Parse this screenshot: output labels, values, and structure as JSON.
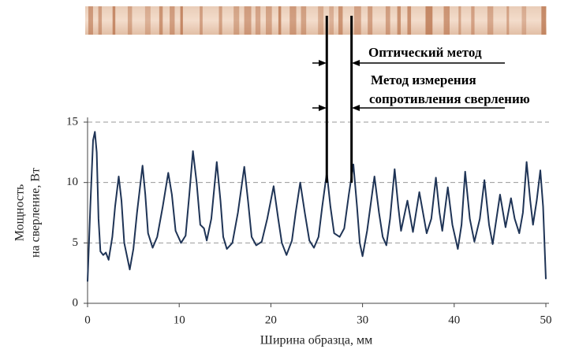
{
  "chart_data": {
    "type": "line",
    "xlabel": "Ширина образца, мм",
    "ylabel": [
      "Мощность",
      "на сверление, Вт"
    ],
    "annotations": [
      "Оптический метод",
      "Метод измерения",
      "сопротивления сверлению"
    ],
    "annotation_x": [
      26.1,
      28.8
    ],
    "color": "#1f3456",
    "grid": true,
    "xlim": [
      0,
      50
    ],
    "xticks": [
      0,
      10,
      20,
      30,
      40,
      50
    ],
    "ylim": [
      0,
      15
    ],
    "yticks": [
      0,
      5,
      10,
      15
    ],
    "x": [
      0,
      0.3,
      0.6,
      0.8,
      1.0,
      1.2,
      1.4,
      1.7,
      2.0,
      2.3,
      2.7,
      3.0,
      3.4,
      3.7,
      4.0,
      4.6,
      5.0,
      5.4,
      6.0,
      6.3,
      6.6,
      7.1,
      7.6,
      8.2,
      8.8,
      9.2,
      9.6,
      10.2,
      10.7,
      11.1,
      11.5,
      11.9,
      12.3,
      12.7,
      13.0,
      13.5,
      14.1,
      14.5,
      14.8,
      15.2,
      15.8,
      16.4,
      17.1,
      17.5,
      17.9,
      18.4,
      19.0,
      19.6,
      20.3,
      20.8,
      21.2,
      21.7,
      22.3,
      22.7,
      23.2,
      23.7,
      24.2,
      24.7,
      25.2,
      25.6,
      26.1,
      26.5,
      26.9,
      27.5,
      28.0,
      28.5,
      29.0,
      29.4,
      29.7,
      30.0,
      30.5,
      31.3,
      31.8,
      32.2,
      32.6,
      33.0,
      33.5,
      33.9,
      34.2,
      34.9,
      35.5,
      36.2,
      37.0,
      37.5,
      38.0,
      38.4,
      38.7,
      39.3,
      39.8,
      40.4,
      40.8,
      41.2,
      41.7,
      42.2,
      42.8,
      43.3,
      43.8,
      44.2,
      45.0,
      45.6,
      46.2,
      46.6,
      47.1,
      47.5,
      47.9,
      48.3,
      48.6,
      49.0,
      49.4,
      49.7,
      50
    ],
    "values": [
      1.8,
      8,
      13.5,
      14.2,
      12.5,
      7,
      4.3,
      4.0,
      4.2,
      3.6,
      5.5,
      8,
      10.5,
      8.5,
      5,
      2.8,
      4.5,
      7.5,
      11.4,
      9,
      5.8,
      4.6,
      5.5,
      8.0,
      10.8,
      9,
      6,
      5.0,
      5.6,
      9,
      12.6,
      10,
      6.5,
      6.2,
      5.2,
      7,
      11.7,
      8.5,
      5.5,
      4.5,
      5.0,
      7.5,
      11.3,
      8.5,
      5.5,
      4.8,
      5.1,
      7,
      9.7,
      7,
      5,
      4.0,
      5.2,
      7.5,
      10.0,
      7.5,
      5.2,
      4.6,
      5.5,
      8,
      10.8,
      8,
      5.8,
      5.5,
      6.2,
      9,
      11.5,
      8,
      5,
      3.9,
      6,
      10.5,
      7.5,
      5.5,
      4.8,
      7,
      11.1,
      8,
      6,
      8.5,
      5.9,
      9.2,
      5.8,
      7,
      10.4,
      7.5,
      6.0,
      9.6,
      6.5,
      4.5,
      6.5,
      10.9,
      7,
      5.1,
      7,
      10.2,
      6.5,
      4.9,
      9.0,
      6.3,
      8.7,
      7,
      5.8,
      7.5,
      11.7,
      8.5,
      6.5,
      8.5,
      11.0,
      8,
      2.0
    ]
  }
}
